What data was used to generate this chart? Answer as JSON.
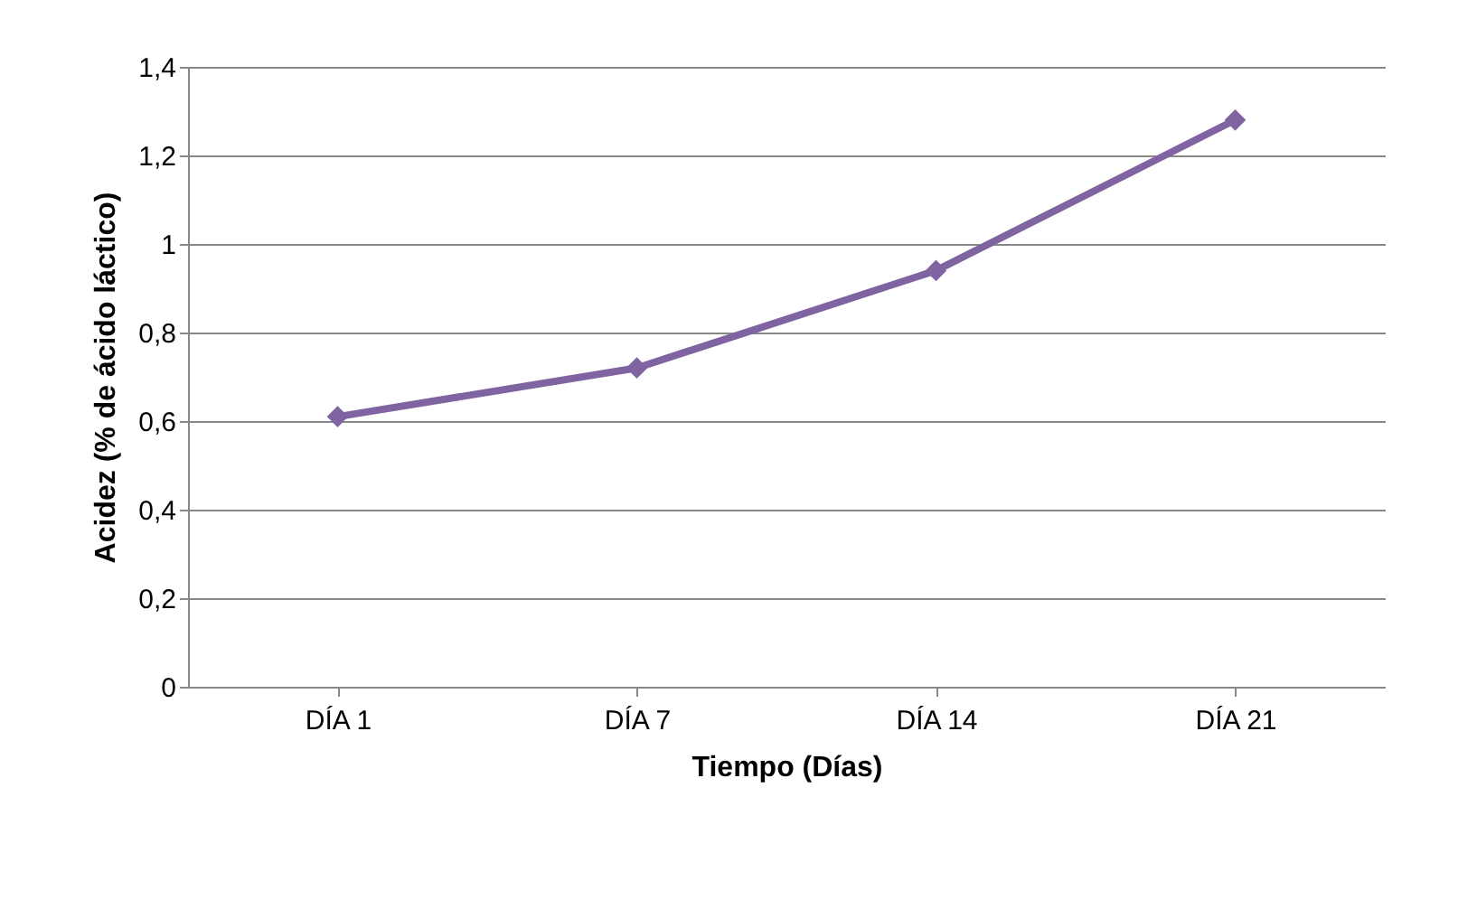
{
  "chart_data": {
    "type": "line",
    "xlabel": "Tiempo (Días)",
    "ylabel": "Acidez (% de ácido láctico)",
    "categories": [
      "DÍA 1",
      "DÍA 7",
      "DÍA 14",
      "DÍA 21"
    ],
    "series": [
      {
        "color": "#8064a2",
        "values": [
          0.61,
          0.72,
          0.94,
          1.28
        ]
      }
    ],
    "ylim": [
      0,
      1.4
    ],
    "yticks": [
      0,
      {
        "value": 0.2,
        "label": "0,2"
      },
      {
        "value": 0.4,
        "label": "0,4"
      },
      {
        "value": 0.6,
        "label": "0,6"
      },
      {
        "value": 0.8,
        "label": "0,8"
      },
      1,
      {
        "value": 1.2,
        "label": "1,2"
      },
      {
        "value": 1.4,
        "label": "1,4"
      }
    ],
    "grid": "y",
    "marker": "diamond",
    "line_style": "solid"
  }
}
